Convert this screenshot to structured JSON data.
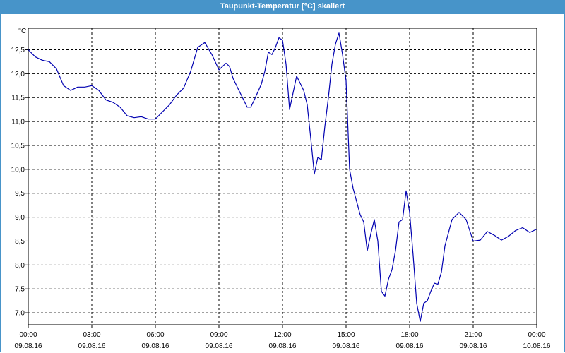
{
  "window": {
    "title": "Taupunkt-Temperatur [°C] skaliert"
  },
  "colors": {
    "titlebar": "#4794c9",
    "line": "#0000b0",
    "grid": "#000000"
  },
  "chart_data": {
    "type": "line",
    "title": "Taupunkt-Temperatur [°C] skaliert",
    "ylabel": "°C",
    "xlabel": "",
    "xlim": [
      "09.08.16 00:00",
      "10.08.16 00:00"
    ],
    "ylim": [
      6.75,
      12.95
    ],
    "grid": true,
    "legend": "none",
    "yticks": [
      7.0,
      7.5,
      8.0,
      8.5,
      9.0,
      9.5,
      10.0,
      10.5,
      11.0,
      11.5,
      12.0,
      12.5
    ],
    "ytick_labels": [
      "7,0",
      "7,5",
      "8,0",
      "8,5",
      "9,0",
      "9,5",
      "10,0",
      "10,5",
      "11,0",
      "11,5",
      "12,0",
      "12,5"
    ],
    "xticks": [
      {
        "time": "00:00",
        "date": "09.08.16"
      },
      {
        "time": "03:00",
        "date": "09.08.16"
      },
      {
        "time": "06:00",
        "date": "09.08.16"
      },
      {
        "time": "09:00",
        "date": "09.08.16"
      },
      {
        "time": "12:00",
        "date": "09.08.16"
      },
      {
        "time": "15:00",
        "date": "09.08.16"
      },
      {
        "time": "18:00",
        "date": "09.08.16"
      },
      {
        "time": "21:00",
        "date": "09.08.16"
      },
      {
        "time": "00:00",
        "date": "10.08.16"
      }
    ],
    "series": [
      {
        "x": [
          "09.08.16 00:00",
          "09.08.16 00:20",
          "09.08.16 00:40",
          "09.08.16 01:00",
          "09.08.16 01:20",
          "09.08.16 01:40",
          "09.08.16 02:00",
          "09.08.16 02:20",
          "09.08.16 02:40",
          "09.08.16 03:00",
          "09.08.16 03:20",
          "09.08.16 03:40",
          "09.08.16 04:00",
          "09.08.16 04:20",
          "09.08.16 04:40",
          "09.08.16 05:00",
          "09.08.16 05:20",
          "09.08.16 05:40",
          "09.08.16 06:00",
          "09.08.16 06:20",
          "09.08.16 06:40",
          "09.08.16 07:00",
          "09.08.16 07:20",
          "09.08.16 07:40",
          "09.08.16 08:00",
          "09.08.16 08:20",
          "09.08.16 08:40",
          "09.08.16 09:00",
          "09.08.16 09:10",
          "09.08.16 09:20",
          "09.08.16 09:30",
          "09.08.16 09:40",
          "09.08.16 10:00",
          "09.08.16 10:20",
          "09.08.16 10:30",
          "09.08.16 10:40",
          "09.08.16 11:00",
          "09.08.16 11:10",
          "09.08.16 11:20",
          "09.08.16 11:30",
          "09.08.16 11:40",
          "09.08.16 11:50",
          "09.08.16 12:00",
          "09.08.16 12:10",
          "09.08.16 12:20",
          "09.08.16 12:40",
          "09.08.16 13:00",
          "09.08.16 13:10",
          "09.08.16 13:20",
          "09.08.16 13:30",
          "09.08.16 13:40",
          "09.08.16 13:50",
          "09.08.16 14:00",
          "09.08.16 14:10",
          "09.08.16 14:20",
          "09.08.16 14:30",
          "09.08.16 14:40",
          "09.08.16 14:50",
          "09.08.16 15:00",
          "09.08.16 15:10",
          "09.08.16 15:20",
          "09.08.16 15:40",
          "09.08.16 15:50",
          "09.08.16 16:00",
          "09.08.16 16:10",
          "09.08.16 16:20",
          "09.08.16 16:30",
          "09.08.16 16:40",
          "09.08.16 16:50",
          "09.08.16 17:00",
          "09.08.16 17:10",
          "09.08.16 17:20",
          "09.08.16 17:30",
          "09.08.16 17:40",
          "09.08.16 17:50",
          "09.08.16 18:00",
          "09.08.16 18:10",
          "09.08.16 18:20",
          "09.08.16 18:30",
          "09.08.16 18:40",
          "09.08.16 18:50",
          "09.08.16 19:00",
          "09.08.16 19:10",
          "09.08.16 19:20",
          "09.08.16 19:30",
          "09.08.16 19:40",
          "09.08.16 20:00",
          "09.08.16 20:20",
          "09.08.16 20:40",
          "09.08.16 21:00",
          "09.08.16 21:20",
          "09.08.16 21:40",
          "09.08.16 22:00",
          "09.08.16 22:20",
          "09.08.16 22:40",
          "09.08.16 23:00",
          "09.08.16 23:20",
          "09.08.16 23:40",
          "10.08.16 00:00"
        ],
        "y": [
          12.5,
          12.35,
          12.28,
          12.25,
          12.1,
          11.75,
          11.65,
          11.72,
          11.72,
          11.75,
          11.65,
          11.45,
          11.4,
          11.3,
          11.12,
          11.08,
          11.1,
          11.05,
          11.05,
          11.2,
          11.35,
          11.55,
          11.7,
          12.05,
          12.55,
          12.65,
          12.4,
          12.08,
          12.15,
          12.22,
          12.15,
          11.9,
          11.6,
          11.3,
          11.3,
          11.45,
          11.78,
          12.05,
          12.45,
          12.4,
          12.55,
          12.75,
          12.7,
          12.2,
          11.25,
          11.95,
          11.65,
          11.35,
          10.65,
          9.9,
          10.25,
          10.2,
          10.9,
          11.5,
          12.2,
          12.62,
          12.85,
          12.4,
          11.85,
          10.0,
          9.6,
          9.05,
          8.9,
          8.3,
          8.65,
          8.95,
          8.5,
          7.45,
          7.35,
          7.7,
          7.9,
          8.3,
          8.9,
          8.95,
          9.55,
          9.1,
          8.2,
          7.2,
          6.82,
          7.2,
          7.25,
          7.45,
          7.62,
          7.6,
          7.85,
          8.4,
          8.95,
          9.1,
          8.95,
          8.5,
          8.52,
          8.7,
          8.62,
          8.52,
          8.6,
          8.72,
          8.78,
          8.68,
          8.75
        ]
      }
    ]
  }
}
